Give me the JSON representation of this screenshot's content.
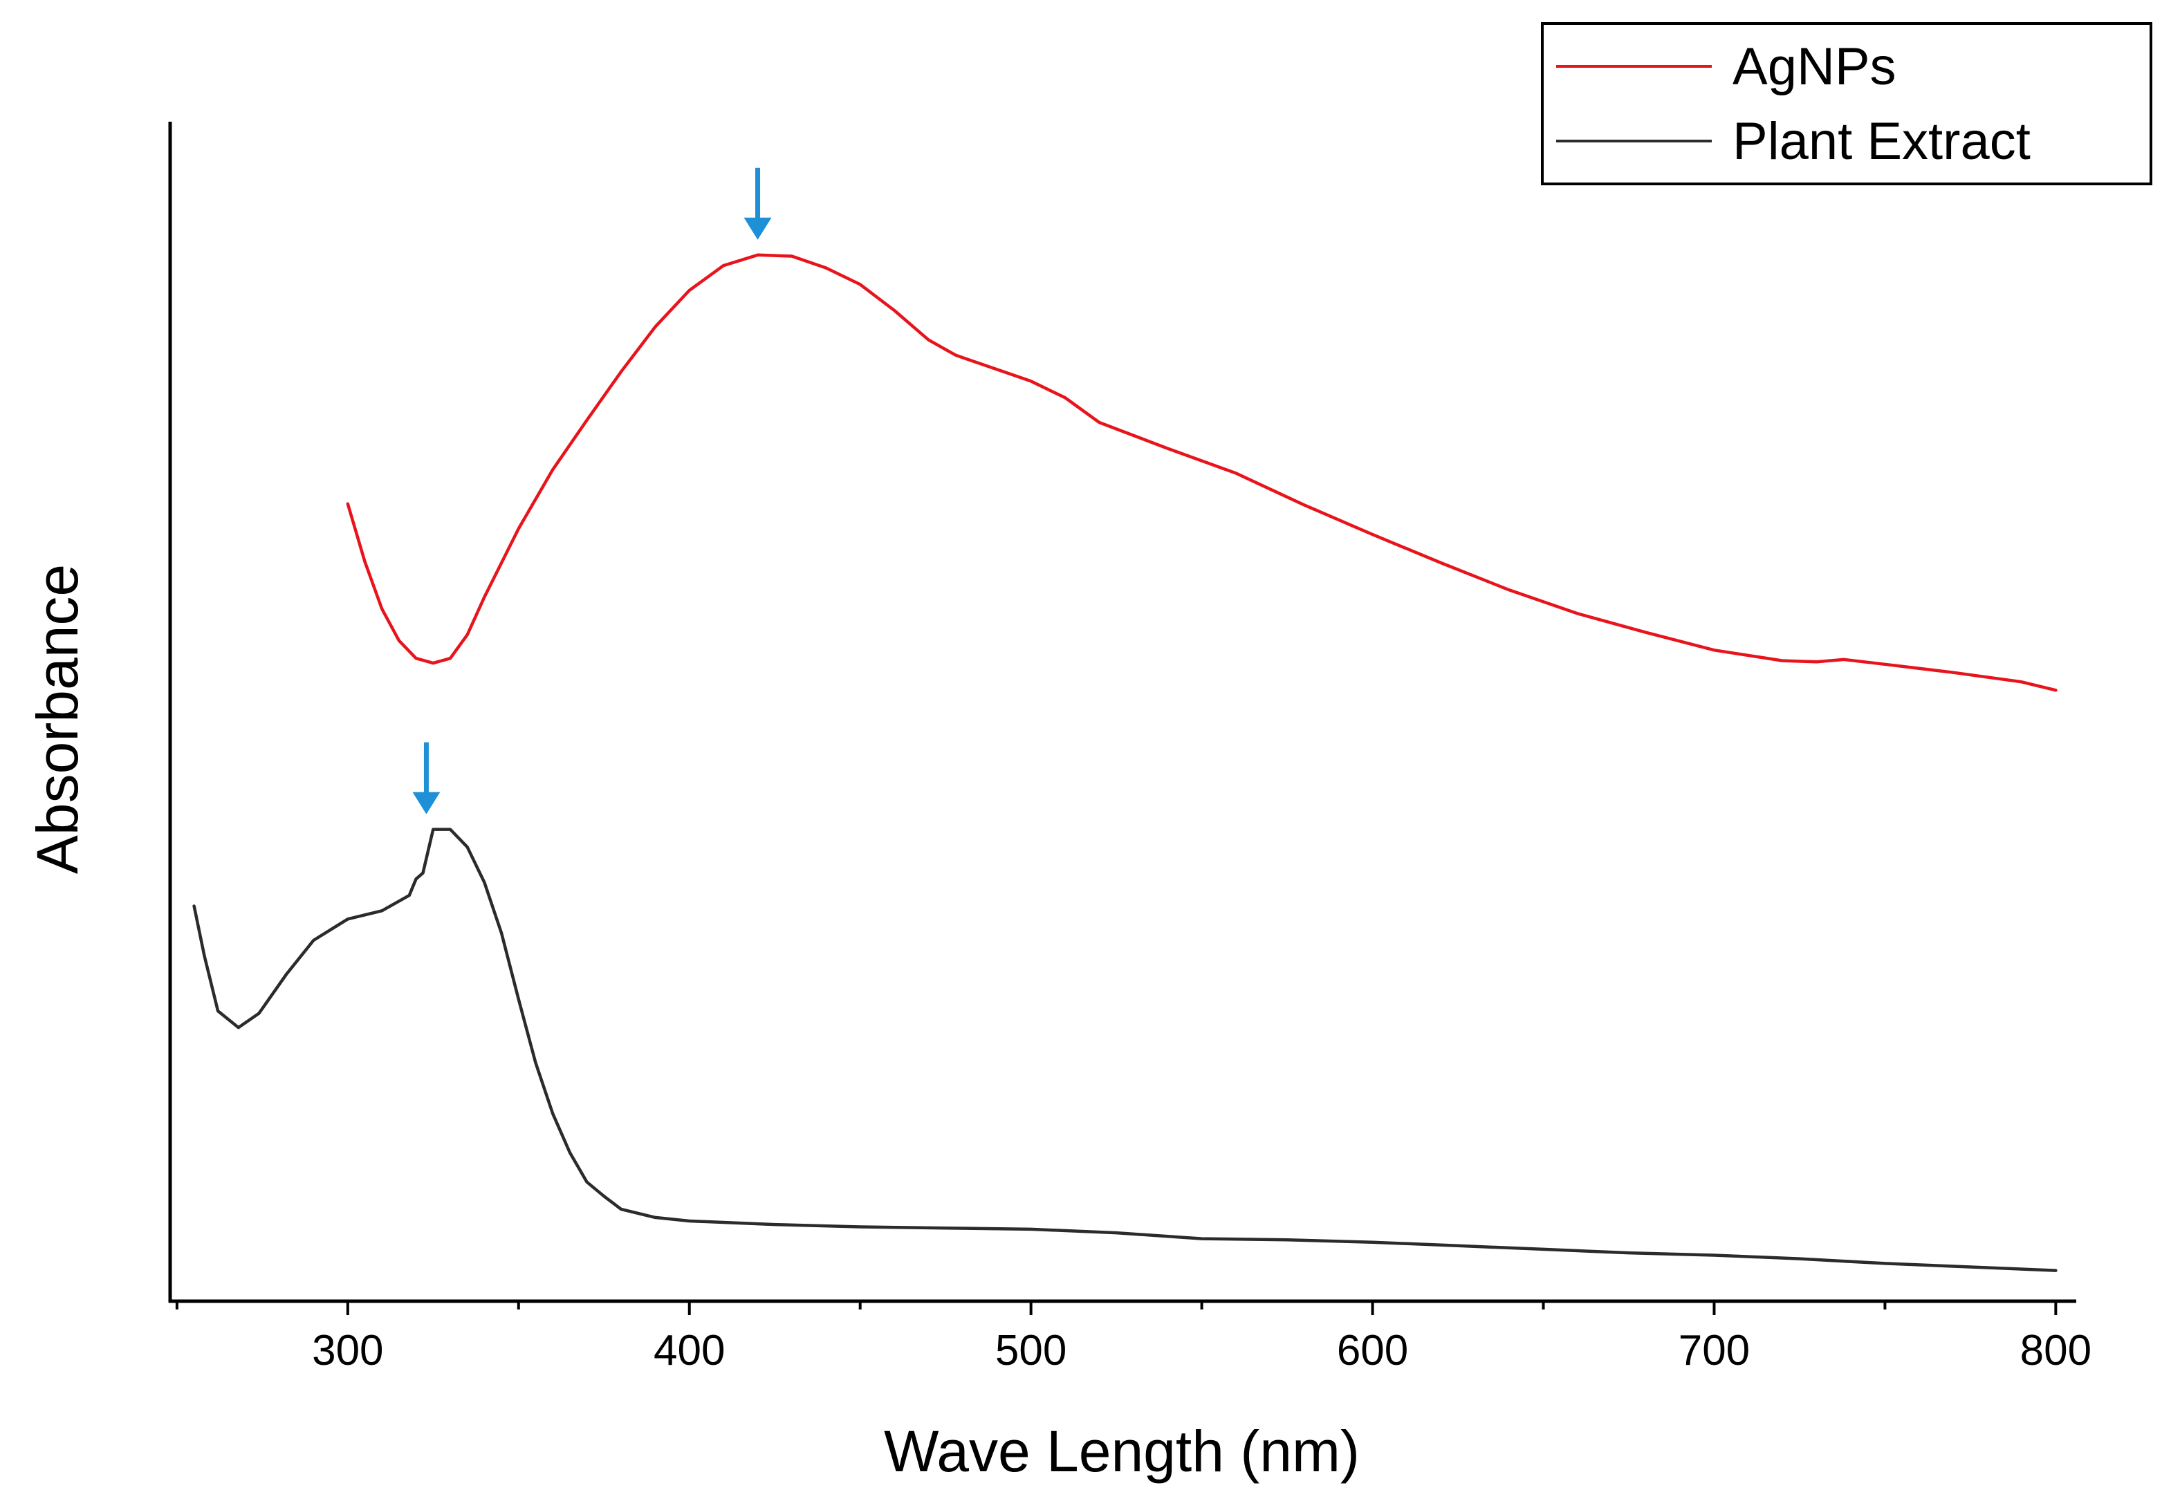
{
  "chart_data": {
    "type": "line",
    "title": "",
    "xlabel": "Wave Length (nm)",
    "ylabel": "Absorbance",
    "xlim": [
      248,
      806
    ],
    "ylim": [
      0,
      1.0
    ],
    "x_ticks": [
      300,
      400,
      500,
      600,
      700,
      800
    ],
    "y_ticks_shown": false,
    "grid": false,
    "legend_position": "top-right",
    "series": [
      {
        "name": "AgNPs",
        "color": "#e8141c",
        "points": [
          [
            300,
            0.676
          ],
          [
            305,
            0.627
          ],
          [
            310,
            0.587
          ],
          [
            315,
            0.56
          ],
          [
            320,
            0.545
          ],
          [
            325,
            0.541
          ],
          [
            330,
            0.545
          ],
          [
            335,
            0.565
          ],
          [
            340,
            0.597
          ],
          [
            350,
            0.655
          ],
          [
            360,
            0.705
          ],
          [
            370,
            0.747
          ],
          [
            380,
            0.788
          ],
          [
            390,
            0.826
          ],
          [
            400,
            0.857
          ],
          [
            410,
            0.878
          ],
          [
            420,
            0.887
          ],
          [
            430,
            0.886
          ],
          [
            440,
            0.876
          ],
          [
            450,
            0.862
          ],
          [
            460,
            0.84
          ],
          [
            470,
            0.815
          ],
          [
            478,
            0.802
          ],
          [
            490,
            0.79
          ],
          [
            500,
            0.78
          ],
          [
            510,
            0.766
          ],
          [
            520,
            0.745
          ],
          [
            540,
            0.723
          ],
          [
            560,
            0.702
          ],
          [
            580,
            0.675
          ],
          [
            600,
            0.65
          ],
          [
            620,
            0.626
          ],
          [
            640,
            0.603
          ],
          [
            660,
            0.583
          ],
          [
            680,
            0.567
          ],
          [
            700,
            0.552
          ],
          [
            720,
            0.543
          ],
          [
            730,
            0.542
          ],
          [
            738,
            0.544
          ],
          [
            750,
            0.54
          ],
          [
            770,
            0.533
          ],
          [
            790,
            0.525
          ],
          [
            800,
            0.518
          ]
        ]
      },
      {
        "name": "Plant Extract",
        "color": "#2b2b2b",
        "points": [
          [
            255,
            0.335
          ],
          [
            258,
            0.293
          ],
          [
            262,
            0.246
          ],
          [
            268,
            0.232
          ],
          [
            274,
            0.244
          ],
          [
            282,
            0.277
          ],
          [
            290,
            0.306
          ],
          [
            300,
            0.324
          ],
          [
            310,
            0.331
          ],
          [
            318,
            0.344
          ],
          [
            320,
            0.358
          ],
          [
            322,
            0.363
          ],
          [
            325,
            0.4
          ],
          [
            330,
            0.4
          ],
          [
            335,
            0.385
          ],
          [
            340,
            0.355
          ],
          [
            345,
            0.312
          ],
          [
            350,
            0.256
          ],
          [
            355,
            0.202
          ],
          [
            360,
            0.159
          ],
          [
            365,
            0.126
          ],
          [
            370,
            0.101
          ],
          [
            375,
            0.089
          ],
          [
            380,
            0.078
          ],
          [
            390,
            0.071
          ],
          [
            400,
            0.068
          ],
          [
            425,
            0.065
          ],
          [
            450,
            0.063
          ],
          [
            475,
            0.062
          ],
          [
            500,
            0.061
          ],
          [
            525,
            0.058
          ],
          [
            550,
            0.053
          ],
          [
            575,
            0.052
          ],
          [
            600,
            0.05
          ],
          [
            625,
            0.047
          ],
          [
            650,
            0.044
          ],
          [
            675,
            0.041
          ],
          [
            700,
            0.039
          ],
          [
            725,
            0.036
          ],
          [
            750,
            0.032
          ],
          [
            775,
            0.029
          ],
          [
            800,
            0.026
          ]
        ]
      }
    ],
    "annotations": [
      {
        "type": "arrow",
        "color": "#1e90d6",
        "target_series": "AgNPs",
        "x": 420,
        "y": 0.887,
        "meaning": "absorption peak"
      },
      {
        "type": "arrow",
        "color": "#1e90d6",
        "target_series": "Plant Extract",
        "x": 323,
        "y": 0.4,
        "meaning": "absorption peak"
      }
    ]
  }
}
